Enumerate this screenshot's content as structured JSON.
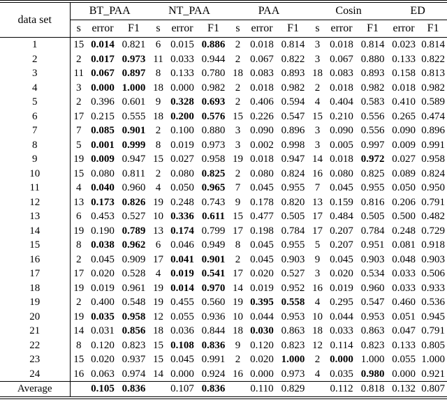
{
  "table": {
    "corner_label": "data set",
    "groups": [
      {
        "label": "BT_PAA",
        "cols": [
          "s",
          "error",
          "F1"
        ]
      },
      {
        "label": "NT_PAA",
        "cols": [
          "s",
          "error",
          "F1"
        ]
      },
      {
        "label": "PAA",
        "cols": [
          "s",
          "error",
          "F1"
        ]
      },
      {
        "label": "Cosin",
        "cols": [
          "s",
          "error",
          "F1"
        ]
      },
      {
        "label": "ED",
        "cols": [
          "error",
          "F1"
        ]
      }
    ],
    "rows": [
      {
        "id": "1",
        "cells": [
          "15",
          "0.014",
          "0.821",
          "6",
          "0.015",
          "0.886",
          "2",
          "0.018",
          "0.814",
          "3",
          "0.018",
          "0.814",
          "0.023",
          "0.814"
        ],
        "bold": [
          1,
          5
        ]
      },
      {
        "id": "2",
        "cells": [
          "2",
          "0.017",
          "0.973",
          "11",
          "0.033",
          "0.944",
          "2",
          "0.067",
          "0.822",
          "3",
          "0.067",
          "0.880",
          "0.133",
          "0.822"
        ],
        "bold": [
          1,
          2
        ]
      },
      {
        "id": "3",
        "cells": [
          "11",
          "0.067",
          "0.897",
          "8",
          "0.133",
          "0.780",
          "18",
          "0.083",
          "0.893",
          "18",
          "0.083",
          "0.893",
          "0.158",
          "0.813"
        ],
        "bold": [
          1,
          2
        ]
      },
      {
        "id": "4",
        "cells": [
          "3",
          "0.000",
          "1.000",
          "18",
          "0.000",
          "0.982",
          "2",
          "0.018",
          "0.982",
          "2",
          "0.018",
          "0.982",
          "0.018",
          "0.982"
        ],
        "bold": [
          1,
          2
        ]
      },
      {
        "id": "5",
        "cells": [
          "2",
          "0.396",
          "0.601",
          "9",
          "0.328",
          "0.693",
          "2",
          "0.406",
          "0.594",
          "4",
          "0.404",
          "0.583",
          "0.410",
          "0.589"
        ],
        "bold": [
          4,
          5
        ]
      },
      {
        "id": "6",
        "cells": [
          "17",
          "0.215",
          "0.555",
          "18",
          "0.200",
          "0.576",
          "15",
          "0.226",
          "0.547",
          "15",
          "0.210",
          "0.556",
          "0.265",
          "0.474"
        ],
        "bold": [
          4,
          5
        ]
      },
      {
        "id": "7",
        "cells": [
          "7",
          "0.085",
          "0.901",
          "2",
          "0.100",
          "0.880",
          "3",
          "0.090",
          "0.896",
          "3",
          "0.090",
          "0.556",
          "0.090",
          "0.896"
        ],
        "bold": [
          1,
          2
        ]
      },
      {
        "id": "8",
        "cells": [
          "5",
          "0.001",
          "0.999",
          "8",
          "0.019",
          "0.973",
          "3",
          "0.002",
          "0.998",
          "3",
          "0.005",
          "0.997",
          "0.009",
          "0.991"
        ],
        "bold": [
          1,
          2
        ]
      },
      {
        "id": "9",
        "cells": [
          "19",
          "0.009",
          "0.947",
          "15",
          "0.027",
          "0.958",
          "19",
          "0.018",
          "0.947",
          "14",
          "0.018",
          "0.972",
          "0.027",
          "0.958"
        ],
        "bold": [
          1,
          11
        ]
      },
      {
        "id": "10",
        "cells": [
          "15",
          "0.080",
          "0.811",
          "2",
          "0.080",
          "0.825",
          "2",
          "0.080",
          "0.824",
          "16",
          "0.080",
          "0.825",
          "0.089",
          "0.824"
        ],
        "bold": [
          5
        ]
      },
      {
        "id": "11",
        "cells": [
          "4",
          "0.040",
          "0.960",
          "4",
          "0.050",
          "0.965",
          "7",
          "0.045",
          "0.955",
          "7",
          "0.045",
          "0.955",
          "0.050",
          "0.950"
        ],
        "bold": [
          1,
          5
        ]
      },
      {
        "id": "12",
        "cells": [
          "13",
          "0.173",
          "0.826",
          "19",
          "0.248",
          "0.743",
          "9",
          "0.178",
          "0.820",
          "13",
          "0.159",
          "0.816",
          "0.206",
          "0.791"
        ],
        "bold": [
          1,
          2
        ]
      },
      {
        "id": "13",
        "cells": [
          "6",
          "0.453",
          "0.527",
          "10",
          "0.336",
          "0.611",
          "15",
          "0.477",
          "0.505",
          "17",
          "0.484",
          "0.505",
          "0.500",
          "0.482"
        ],
        "bold": [
          4,
          5
        ]
      },
      {
        "id": "14",
        "cells": [
          "19",
          "0.190",
          "0.789",
          "13",
          "0.174",
          "0.799",
          "17",
          "0.198",
          "0.784",
          "17",
          "0.207",
          "0.784",
          "0.248",
          "0.729"
        ],
        "bold": [
          2,
          4
        ]
      },
      {
        "id": "15",
        "cells": [
          "8",
          "0.038",
          "0.962",
          "6",
          "0.046",
          "0.949",
          "8",
          "0.045",
          "0.955",
          "5",
          "0.207",
          "0.951",
          "0.081",
          "0.918"
        ],
        "bold": [
          1,
          2
        ]
      },
      {
        "id": "16",
        "cells": [
          "2",
          "0.045",
          "0.909",
          "17",
          "0.041",
          "0.901",
          "2",
          "0.045",
          "0.903",
          "9",
          "0.045",
          "0.903",
          "0.048",
          "0.903"
        ],
        "bold": [
          4,
          5
        ]
      },
      {
        "id": "17",
        "cells": [
          "17",
          "0.020",
          "0.528",
          "4",
          "0.019",
          "0.541",
          "17",
          "0.020",
          "0.527",
          "3",
          "0.020",
          "0.534",
          "0.033",
          "0.506"
        ],
        "bold": [
          4,
          5
        ]
      },
      {
        "id": "18",
        "cells": [
          "19",
          "0.019",
          "0.961",
          "19",
          "0.014",
          "0.970",
          "14",
          "0.019",
          "0.952",
          "16",
          "0.019",
          "0.960",
          "0.033",
          "0.933"
        ],
        "bold": [
          4,
          5
        ]
      },
      {
        "id": "19",
        "cells": [
          "2",
          "0.400",
          "0.548",
          "19",
          "0.455",
          "0.560",
          "19",
          "0.395",
          "0.558",
          "4",
          "0.295",
          "0.547",
          "0.460",
          "0.536"
        ],
        "bold": [
          7,
          8
        ]
      },
      {
        "id": "20",
        "cells": [
          "19",
          "0.035",
          "0.958",
          "12",
          "0.055",
          "0.936",
          "10",
          "0.044",
          "0.953",
          "10",
          "0.044",
          "0.953",
          "0.051",
          "0.945"
        ],
        "bold": [
          1,
          2
        ]
      },
      {
        "id": "21",
        "cells": [
          "14",
          "0.031",
          "0.856",
          "18",
          "0.036",
          "0.844",
          "18",
          "0.030",
          "0.863",
          "18",
          "0.033",
          "0.863",
          "0.047",
          "0.791"
        ],
        "bold": [
          2,
          7
        ]
      },
      {
        "id": "22",
        "cells": [
          "8",
          "0.120",
          "0.823",
          "15",
          "0.108",
          "0.836",
          "9",
          "0.120",
          "0.823",
          "12",
          "0.114",
          "0.823",
          "0.133",
          "0.805"
        ],
        "bold": [
          4,
          5
        ]
      },
      {
        "id": "23",
        "cells": [
          "15",
          "0.020",
          "0.937",
          "15",
          "0.045",
          "0.991",
          "2",
          "0.020",
          "1.000",
          "2",
          "0.000",
          "1.000",
          "0.055",
          "1.000"
        ],
        "bold": [
          8,
          10
        ]
      },
      {
        "id": "24",
        "cells": [
          "16",
          "0.063",
          "0.974",
          "14",
          "0.000",
          "0.924",
          "16",
          "0.000",
          "0.973",
          "4",
          "0.035",
          "0.980",
          "0.000",
          "0.921"
        ],
        "bold": [
          11
        ]
      }
    ],
    "average": {
      "label": "Average",
      "cells": [
        "",
        "0.105",
        "0.836",
        "",
        "0.107",
        "0.836",
        "",
        "0.110",
        "0.829",
        "",
        "0.112",
        "0.818",
        "0.132",
        "0.807"
      ],
      "bold": [
        1,
        2,
        5
      ]
    }
  }
}
